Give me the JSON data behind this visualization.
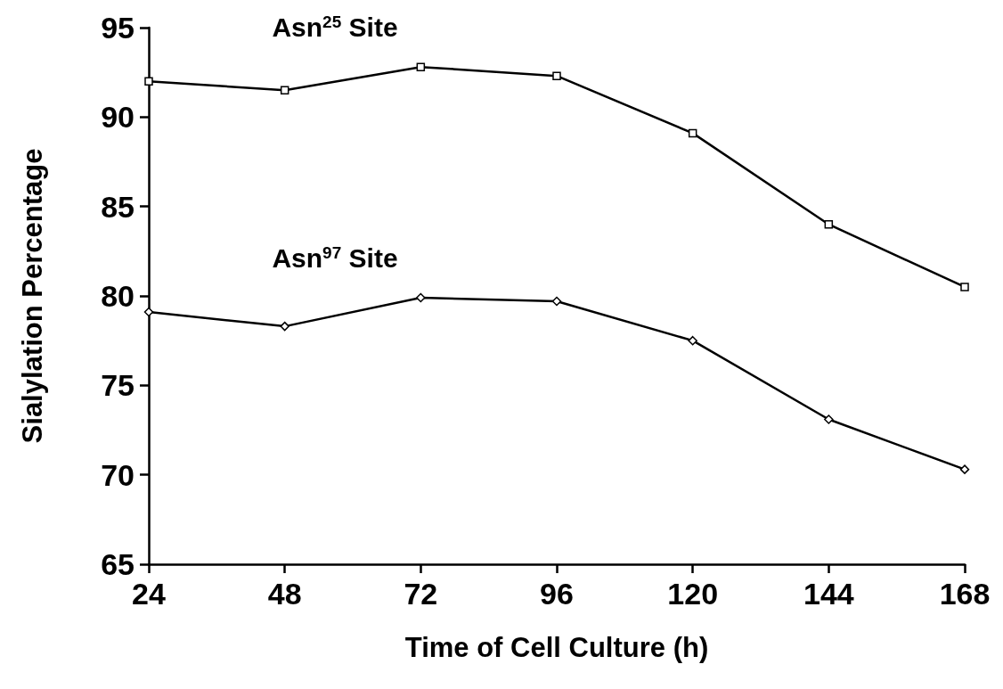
{
  "chart_data": {
    "type": "line",
    "xlabel": "Time of Cell Culture (h)",
    "ylabel": "Sialylation Percentage",
    "x": [
      24,
      48,
      72,
      96,
      120,
      144,
      168
    ],
    "xlim": [
      24,
      168
    ],
    "xticks": [
      24,
      48,
      72,
      96,
      120,
      144,
      168
    ],
    "ylim": [
      65,
      95
    ],
    "yticks": [
      65,
      70,
      75,
      80,
      85,
      90,
      95
    ],
    "grid": false,
    "line_style": "solid",
    "series": [
      {
        "name": "Asn$^{25}$ Site",
        "color": "#000000",
        "marker": "square",
        "values": [
          92.0,
          91.5,
          92.8,
          92.3,
          89.1,
          84.0,
          80.5
        ]
      },
      {
        "name": "Asn$^{97}$ Site",
        "color": "#000000",
        "marker": "diamond",
        "values": [
          79.1,
          78.3,
          79.9,
          79.7,
          77.5,
          73.1,
          70.3
        ]
      }
    ]
  }
}
